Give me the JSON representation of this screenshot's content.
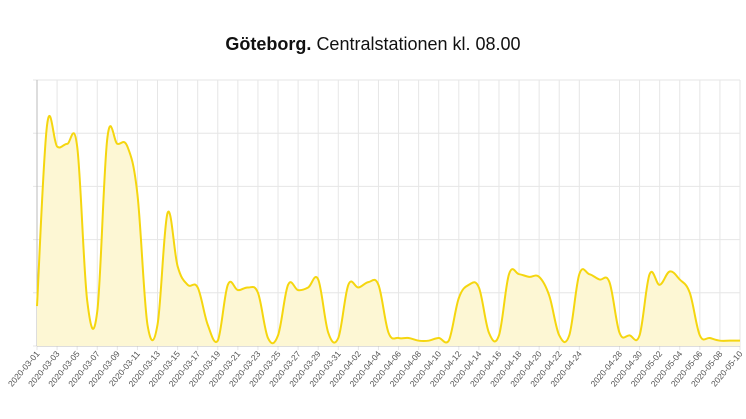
{
  "title": {
    "city": "Göteborg.",
    "rest": "Centralstationen kl. 08.00"
  },
  "colors": {
    "line": "#f5d60f",
    "fill": "#fdf7d4",
    "grid": "#e6e6e6",
    "axis": "#bbbbbb"
  },
  "chart_data": {
    "type": "area",
    "grid": true,
    "ylim": [
      0,
      100
    ],
    "tick_labels": [
      "2020-03-01",
      "2020-03-03",
      "2020-03-05",
      "2020-03-07",
      "2020-03-09",
      "2020-03-11",
      "2020-03-13",
      "2020-03-15",
      "2020-03-17",
      "2020-03-19",
      "2020-03-21",
      "2020-03-23",
      "2020-03-25",
      "2020-03-27",
      "2020-03-29",
      "2020-03-31",
      "2020-04-02",
      "2020-04-04",
      "2020-04-06",
      "2020-04-08",
      "2020-04-10",
      "2020-04-12",
      "2020-04-14",
      "2020-04-16",
      "2020-04-18",
      "2020-04-20",
      "2020-04-22",
      "2020-04-24",
      "2020-04-28",
      "2020-04-30",
      "2020-05-02",
      "2020-05-04",
      "2020-05-06",
      "2020-05-08",
      "2020-05-10"
    ],
    "x": [
      "2020-03-01",
      "2020-03-02",
      "2020-03-03",
      "2020-03-04",
      "2020-03-05",
      "2020-03-06",
      "2020-03-07",
      "2020-03-08",
      "2020-03-09",
      "2020-03-10",
      "2020-03-11",
      "2020-03-12",
      "2020-03-13",
      "2020-03-14",
      "2020-03-15",
      "2020-03-16",
      "2020-03-17",
      "2020-03-18",
      "2020-03-19",
      "2020-03-20",
      "2020-03-21",
      "2020-03-22",
      "2020-03-23",
      "2020-03-24",
      "2020-03-25",
      "2020-03-26",
      "2020-03-27",
      "2020-03-28",
      "2020-03-29",
      "2020-03-30",
      "2020-03-31",
      "2020-04-01",
      "2020-04-02",
      "2020-04-03",
      "2020-04-04",
      "2020-04-05",
      "2020-04-06",
      "2020-04-07",
      "2020-04-08",
      "2020-04-09",
      "2020-04-10",
      "2020-04-11",
      "2020-04-12",
      "2020-04-13",
      "2020-04-14",
      "2020-04-15",
      "2020-04-16",
      "2020-04-17",
      "2020-04-18",
      "2020-04-19",
      "2020-04-20",
      "2020-04-21",
      "2020-04-22",
      "2020-04-23",
      "2020-04-24",
      "2020-04-25",
      "2020-04-26",
      "2020-04-27",
      "2020-04-28",
      "2020-04-29",
      "2020-04-30",
      "2020-05-01",
      "2020-05-02",
      "2020-05-03",
      "2020-05-04",
      "2020-05-05",
      "2020-05-06",
      "2020-05-07",
      "2020-05-08",
      "2020-05-09",
      "2020-05-10"
    ],
    "series": [
      {
        "values": [
          15,
          83,
          75,
          76,
          75,
          17,
          13,
          78,
          76,
          75,
          57,
          8,
          8,
          50,
          30,
          23,
          22,
          8,
          2,
          23,
          21,
          22,
          20,
          3,
          4,
          23,
          21,
          22,
          25,
          5,
          3,
          23,
          22,
          24,
          23,
          5,
          3,
          3,
          2,
          2,
          3,
          2,
          18,
          23,
          22,
          5,
          4,
          27,
          27,
          26,
          26,
          19,
          4,
          4,
          27,
          27,
          25,
          24,
          5,
          4,
          4,
          27,
          23,
          28,
          25,
          20,
          4,
          3,
          2,
          2,
          2
        ]
      }
    ]
  }
}
